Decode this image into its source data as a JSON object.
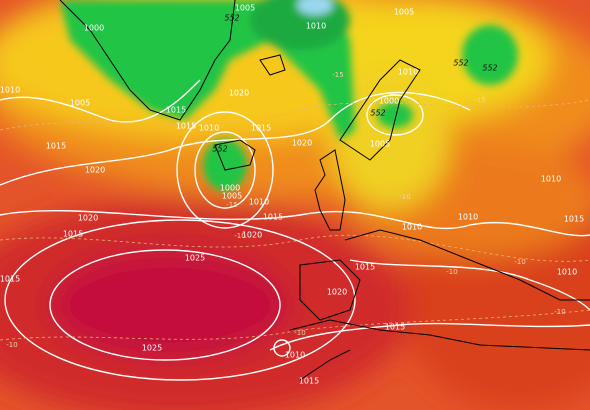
{
  "isobar_labels": [
    "1005",
    "1005",
    "1000",
    "1010",
    "1005",
    "1010",
    "1015",
    "1015",
    "1010",
    "1020",
    "1015",
    "1020",
    "1015",
    "1020",
    "1000",
    "1005",
    "1010",
    "1015",
    "1020",
    "1015",
    "1020",
    "1025",
    "1025",
    "1020",
    "1015",
    "1015",
    "1015",
    "1010",
    "1000",
    "1005",
    "1010",
    "1015",
    "1010",
    "1010",
    "1010",
    "1015",
    "1010"
  ],
  "height_labels": [
    "552",
    "552",
    "552",
    "552",
    "552"
  ],
  "temperature_labels": [
    "-15",
    "-10",
    "-15",
    "-10",
    "-10",
    "-10",
    "-10",
    "-15",
    "-10",
    "-10"
  ]
}
